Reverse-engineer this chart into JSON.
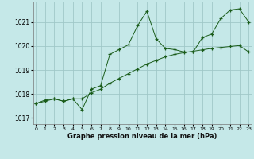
{
  "x": [
    0,
    1,
    2,
    3,
    4,
    5,
    6,
    7,
    8,
    9,
    10,
    11,
    12,
    13,
    14,
    15,
    16,
    17,
    18,
    19,
    20,
    21,
    22,
    23
  ],
  "line1": [
    1017.6,
    1017.7,
    1017.8,
    1017.7,
    1017.8,
    1017.8,
    1018.05,
    1018.2,
    1018.45,
    1018.65,
    1018.85,
    1019.05,
    1019.25,
    1019.4,
    1019.55,
    1019.65,
    1019.72,
    1019.78,
    1019.84,
    1019.9,
    1019.94,
    1019.98,
    1020.02,
    1019.75
  ],
  "line2": [
    1017.6,
    1017.75,
    1017.8,
    1017.7,
    1017.8,
    1017.35,
    1018.2,
    1018.35,
    1019.65,
    1019.85,
    1020.05,
    1020.85,
    1021.45,
    1020.3,
    1019.9,
    1019.85,
    1019.75,
    1019.75,
    1020.35,
    1020.5,
    1021.15,
    1021.5,
    1021.55,
    1021.0
  ],
  "bg_color": "#c5e8e8",
  "grid_color": "#a0c8c8",
  "line_color": "#1a5c1a",
  "xlabel": "Graphe pression niveau de la mer (hPa)",
  "xtick_labels": [
    "0",
    "1",
    "2",
    "3",
    "4",
    "5",
    "6",
    "7",
    "8",
    "9",
    "10",
    "11",
    "12",
    "13",
    "14",
    "15",
    "16",
    "17",
    "18",
    "19",
    "20",
    "21",
    "22",
    "23"
  ],
  "yticks": [
    1017,
    1018,
    1019,
    1020,
    1021
  ],
  "ylim": [
    1016.75,
    1021.85
  ],
  "xlim": [
    -0.3,
    23.3
  ]
}
